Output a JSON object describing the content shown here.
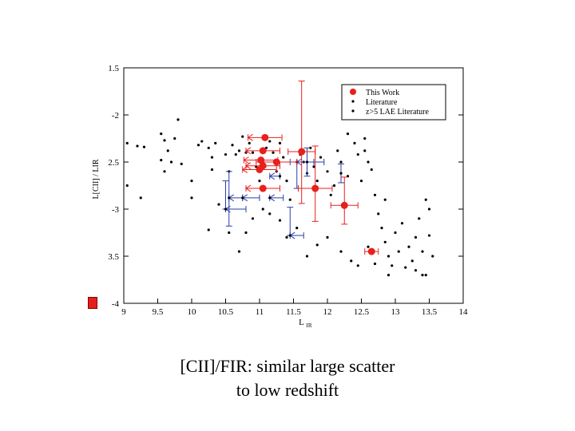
{
  "caption": {
    "line1": "[CII]/FIR: similar large scatter",
    "line2": "to low redshift"
  },
  "colors": {
    "this_work": "#e8201c",
    "literature": "#000000",
    "lae_literature": "#2a3ea8",
    "slide_marker": "#e0201c"
  },
  "chart_data": {
    "type": "scatter",
    "xlabel": "L",
    "xlabel_sub": "IR",
    "ylabel": "L[CII] / LIR",
    "xlim": [
      9,
      14
    ],
    "ylim": [
      -4,
      -1.5
    ],
    "xticks": [
      9,
      9.5,
      10,
      10.5,
      11,
      11.5,
      12,
      12.5,
      13,
      13.5,
      14
    ],
    "xtick_labels": [
      "9",
      "9.5",
      "10",
      "10.5",
      "11",
      "11.5",
      "12",
      "12.5",
      "13",
      "13.5",
      "14"
    ],
    "yticks": [
      -1.5,
      -2,
      -2.5,
      -3,
      -3.5,
      -4
    ],
    "ytick_labels": [
      "1.5",
      "-2",
      "2.5",
      "-3",
      "3.5",
      "-4"
    ],
    "legend": {
      "placement": "top-right",
      "entries": [
        "This Work",
        "Literature",
        "z>5 LAE Literature"
      ]
    },
    "series": [
      {
        "name": "This Work",
        "points": [
          {
            "x": 11.08,
            "y": -2.24,
            "xerr": [
              0.25,
              0.25
            ],
            "yerr": [
              0,
              0
            ],
            "upper_x": true
          },
          {
            "x": 11.05,
            "y": -2.38,
            "xerr": [
              0.25,
              0.25
            ],
            "yerr": [
              0,
              0
            ],
            "upper_x": true
          },
          {
            "x": 11.02,
            "y": -2.48,
            "xerr": [
              0.25,
              0.25
            ],
            "yerr": [
              0,
              0
            ],
            "upper_x": true
          },
          {
            "x": 11.0,
            "y": -2.58,
            "xerr": [
              0.25,
              0.25
            ],
            "yerr": [
              0,
              0
            ],
            "upper_x": true
          },
          {
            "x": 11.05,
            "y": -2.54,
            "xerr": [
              0.25,
              0.25
            ],
            "yerr": [
              0,
              0
            ],
            "upper_x": true
          },
          {
            "x": 11.05,
            "y": -2.78,
            "xerr": [
              0.25,
              0.25
            ],
            "yerr": [
              0,
              0
            ],
            "upper_x": true
          },
          {
            "x": 11.25,
            "y": -2.5,
            "xerr": [
              0.3,
              0.3
            ],
            "yerr": [
              0,
              0
            ]
          },
          {
            "x": 11.62,
            "y": -2.39,
            "xerr": [
              0.2,
              0.2
            ],
            "yerr": [
              0.75,
              0.55
            ]
          },
          {
            "x": 11.82,
            "y": -2.78,
            "xerr": [
              0.25,
              0.25
            ],
            "yerr": [
              0.45,
              0.35
            ]
          },
          {
            "x": 12.25,
            "y": -2.96,
            "xerr": [
              0.2,
              0.2
            ],
            "yerr": [
              0.3,
              0.2
            ]
          },
          {
            "x": 12.65,
            "y": -3.45,
            "xerr": [
              0.1,
              0.1
            ],
            "yerr": [
              0,
              0
            ]
          }
        ]
      },
      {
        "name": "Literature",
        "points": [
          [
            9.05,
            -2.3
          ],
          [
            9.05,
            -2.75
          ],
          [
            9.2,
            -2.33
          ],
          [
            9.25,
            -2.88
          ],
          [
            9.3,
            -2.34
          ],
          [
            9.55,
            -2.2
          ],
          [
            9.55,
            -2.48
          ],
          [
            9.6,
            -2.27
          ],
          [
            9.6,
            -2.6
          ],
          [
            9.65,
            -2.38
          ],
          [
            9.7,
            -2.5
          ],
          [
            9.75,
            -2.25
          ],
          [
            9.8,
            -2.05
          ],
          [
            9.85,
            -2.52
          ],
          [
            10.0,
            -2.7
          ],
          [
            10.0,
            -2.88
          ],
          [
            10.1,
            -2.32
          ],
          [
            10.15,
            -2.28
          ],
          [
            10.25,
            -2.35
          ],
          [
            10.3,
            -2.45
          ],
          [
            10.3,
            -2.58
          ],
          [
            10.35,
            -2.3
          ],
          [
            10.5,
            -2.42
          ],
          [
            10.55,
            -2.6
          ],
          [
            10.6,
            -2.32
          ],
          [
            10.65,
            -2.42
          ],
          [
            10.7,
            -2.38
          ],
          [
            10.75,
            -2.23
          ],
          [
            10.8,
            -2.4
          ],
          [
            10.85,
            -2.3
          ],
          [
            10.9,
            -2.4
          ],
          [
            10.95,
            -2.55
          ],
          [
            11.0,
            -2.7
          ],
          [
            11.1,
            -2.35
          ],
          [
            11.15,
            -2.28
          ],
          [
            11.2,
            -2.4
          ],
          [
            11.25,
            -2.6
          ],
          [
            11.3,
            -2.3
          ],
          [
            11.35,
            -2.45
          ],
          [
            11.4,
            -2.7
          ],
          [
            11.45,
            -2.9
          ],
          [
            11.6,
            -2.42
          ],
          [
            11.65,
            -2.5
          ],
          [
            11.7,
            -2.62
          ],
          [
            11.75,
            -2.35
          ],
          [
            11.8,
            -2.55
          ],
          [
            11.85,
            -2.7
          ],
          [
            11.9,
            -2.45
          ],
          [
            12.0,
            -2.6
          ],
          [
            12.05,
            -2.85
          ],
          [
            12.1,
            -2.75
          ],
          [
            12.15,
            -2.38
          ],
          [
            12.2,
            -2.5
          ],
          [
            12.3,
            -2.65
          ],
          [
            12.4,
            -2.3
          ],
          [
            12.45,
            -2.42
          ],
          [
            12.5,
            -2.7
          ],
          [
            12.55,
            -2.38
          ],
          [
            12.6,
            -2.5
          ],
          [
            12.65,
            -2.58
          ],
          [
            12.7,
            -2.85
          ],
          [
            12.75,
            -3.05
          ],
          [
            12.8,
            -3.2
          ],
          [
            12.85,
            -3.35
          ],
          [
            12.9,
            -3.5
          ],
          [
            12.95,
            -3.6
          ],
          [
            13.0,
            -3.25
          ],
          [
            13.05,
            -3.45
          ],
          [
            13.1,
            -3.15
          ],
          [
            13.15,
            -3.62
          ],
          [
            13.2,
            -3.4
          ],
          [
            13.25,
            -3.55
          ],
          [
            13.3,
            -3.3
          ],
          [
            13.35,
            -3.1
          ],
          [
            13.4,
            -3.45
          ],
          [
            13.45,
            -2.9
          ],
          [
            13.5,
            -3.0
          ],
          [
            13.5,
            -3.28
          ],
          [
            13.55,
            -3.5
          ],
          [
            13.4,
            -3.7
          ],
          [
            12.9,
            -3.7
          ],
          [
            12.45,
            -3.6
          ],
          [
            12.35,
            -3.55
          ],
          [
            12.2,
            -3.45
          ],
          [
            12.0,
            -3.3
          ],
          [
            11.85,
            -3.38
          ],
          [
            11.7,
            -3.5
          ],
          [
            11.55,
            -3.2
          ],
          [
            11.4,
            -3.3
          ],
          [
            11.3,
            -3.12
          ],
          [
            11.15,
            -3.05
          ],
          [
            11.05,
            -3.0
          ],
          [
            10.9,
            -3.1
          ],
          [
            10.8,
            -3.25
          ],
          [
            10.7,
            -3.45
          ],
          [
            10.55,
            -3.25
          ],
          [
            10.25,
            -3.22
          ],
          [
            10.4,
            -2.95
          ],
          [
            12.55,
            -2.25
          ],
          [
            12.3,
            -2.2
          ],
          [
            12.6,
            -3.4
          ],
          [
            12.7,
            -3.58
          ],
          [
            13.45,
            -3.7
          ],
          [
            12.85,
            -2.9
          ],
          [
            13.3,
            -3.65
          ]
        ]
      },
      {
        "name": "z>5 LAE Literature",
        "points": [
          {
            "x": 10.55,
            "y": -2.88,
            "xerr": [
              0.0,
              0.2
            ],
            "upper_x": true,
            "yerr": [
              0.28,
              0.3
            ]
          },
          {
            "x": 10.5,
            "y": -3.0,
            "xerr": [
              0.0,
              0.3
            ],
            "upper_x": true,
            "yerr": [
              0.3,
              0.0
            ]
          },
          {
            "x": 10.75,
            "y": -2.88,
            "xerr": [
              0.0,
              0.25
            ],
            "upper_x": true
          },
          {
            "x": 11.15,
            "y": -2.88,
            "xerr": [
              0.0,
              0.2
            ],
            "upper_x": true
          },
          {
            "x": 11.45,
            "y": -3.28,
            "xerr": [
              0.0,
              0.2
            ],
            "upper_x": true,
            "yerr": [
              0.3,
              0.0
            ]
          },
          {
            "x": 11.55,
            "y": -2.5,
            "xerr": [
              0.0,
              0.25
            ],
            "upper_x": true,
            "yerr": [
              0.0,
              0.28
            ]
          },
          {
            "x": 11.7,
            "y": -2.5,
            "xerr": [
              0.25,
              0.25
            ],
            "yerr": [
              0.15,
              0.15
            ]
          },
          {
            "x": 11.3,
            "y": -2.65,
            "xerr": [
              0.15,
              0.0
            ],
            "upper_x": true
          },
          {
            "x": 12.2,
            "y": -2.62,
            "xerr": [
              0,
              0
            ],
            "yerr": [
              0.1,
              0.1
            ]
          }
        ]
      }
    ]
  }
}
